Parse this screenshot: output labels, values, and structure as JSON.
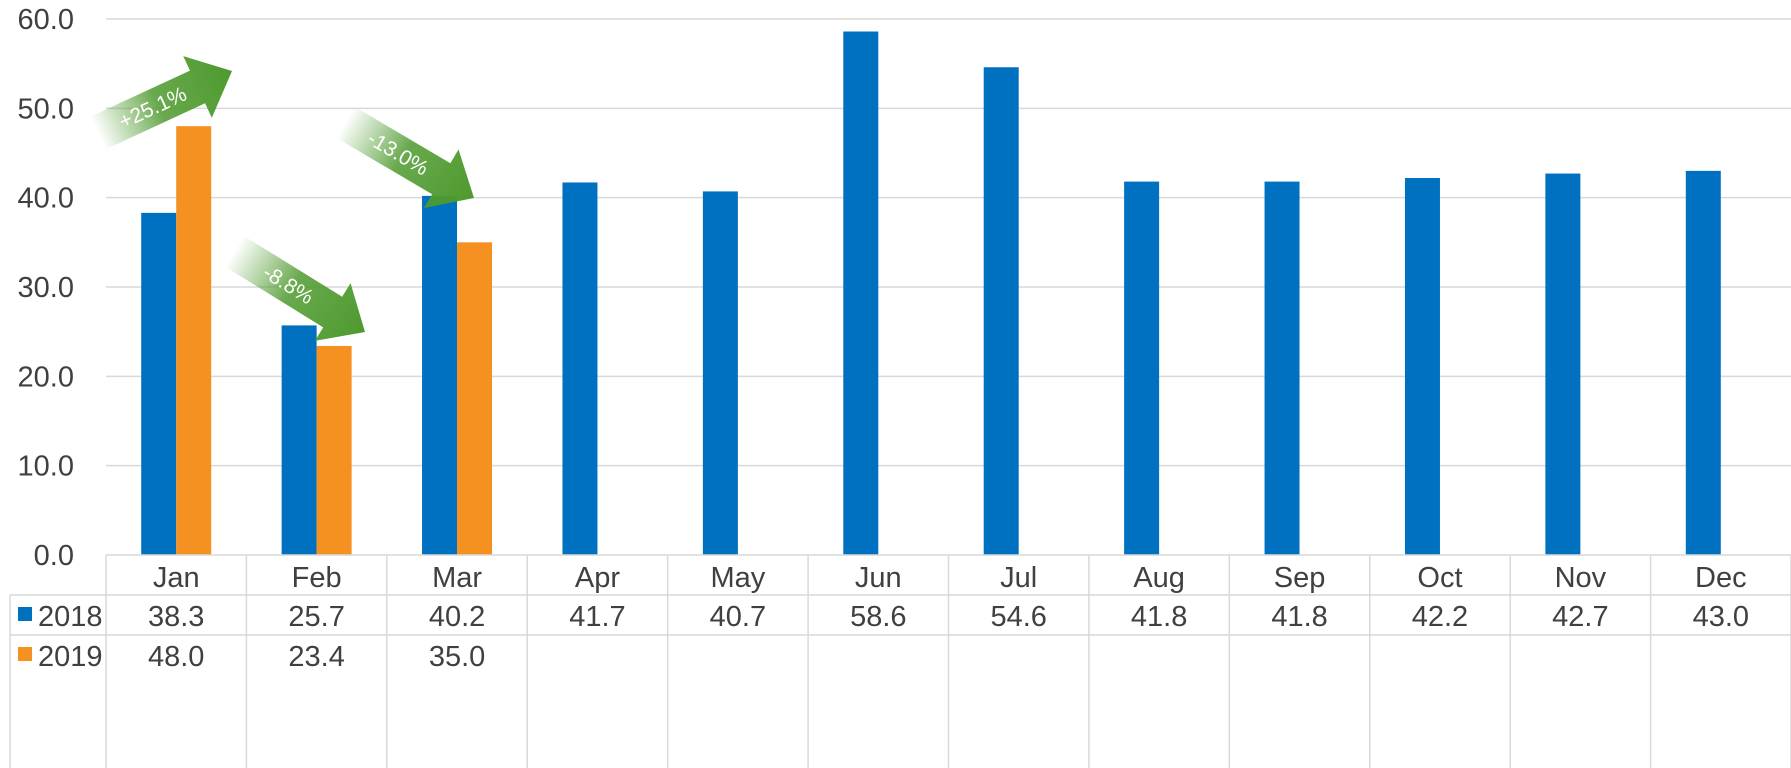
{
  "chart_data": {
    "type": "bar",
    "categories": [
      "Jan",
      "Feb",
      "Mar",
      "Apr",
      "May",
      "Jun",
      "Jul",
      "Aug",
      "Sep",
      "Oct",
      "Nov",
      "Dec"
    ],
    "series": [
      {
        "name": "2018",
        "color": "#0070C0",
        "values": [
          38.3,
          25.7,
          40.2,
          41.7,
          40.7,
          58.6,
          54.6,
          41.8,
          41.8,
          42.2,
          42.7,
          43.0
        ],
        "labels": [
          "38.3",
          "25.7",
          "40.2",
          "41.7",
          "40.7",
          "58.6",
          "54.6",
          "41.8",
          "41.8",
          "42.2",
          "42.7",
          "43.0"
        ]
      },
      {
        "name": "2019",
        "color": "#F59120",
        "values": [
          48.0,
          23.4,
          35.0,
          null,
          null,
          null,
          null,
          null,
          null,
          null,
          null,
          null
        ],
        "labels": [
          "48.0",
          "23.4",
          "35.0",
          "",
          "",
          "",
          "",
          "",
          "",
          "",
          "",
          ""
        ]
      }
    ],
    "ylim": [
      0,
      60
    ],
    "yticks": [
      "0.0",
      "10.0",
      "20.0",
      "30.0",
      "40.0",
      "50.0",
      "60.0"
    ],
    "grid": true,
    "legend": "data-table",
    "annotations": [
      {
        "text": "+25.1%",
        "category": "Jan",
        "direction": "up",
        "color": "#4E9A2E"
      },
      {
        "text": "-8.8%",
        "category": "Feb",
        "direction": "down",
        "color": "#4E9A2E"
      },
      {
        "text": "-13.0%",
        "category": "Mar",
        "direction": "down",
        "color": "#4E9A2E"
      }
    ]
  }
}
